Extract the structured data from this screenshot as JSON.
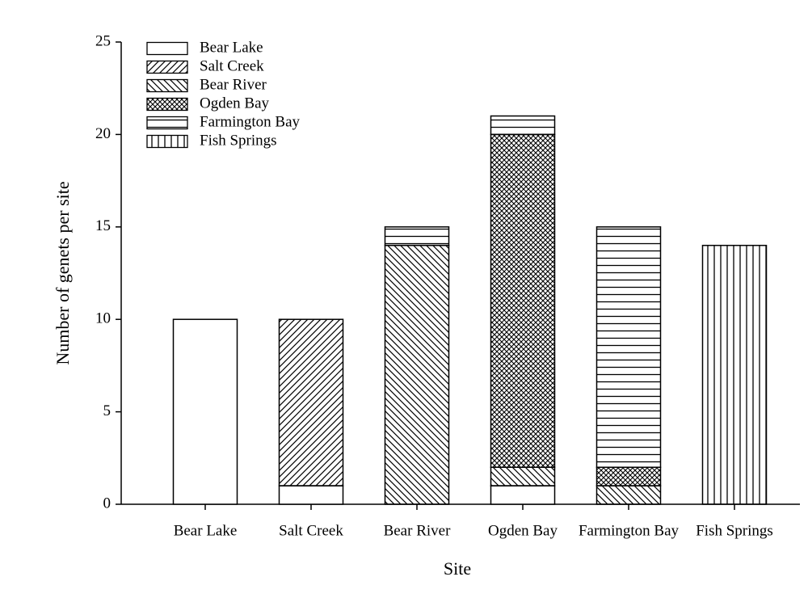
{
  "chart_data": {
    "type": "stacked-bar",
    "xlabel": "Site",
    "ylabel": "Number of genets per site",
    "categories": [
      "Bear Lake",
      "Salt Creek",
      "Bear River",
      "Ogden Bay",
      "Farmington Bay",
      "Fish Springs"
    ],
    "series": [
      {
        "name": "Bear Lake",
        "color": "#000000",
        "hatch": "none",
        "values": [
          10,
          1,
          0,
          1,
          0,
          0
        ]
      },
      {
        "name": "Salt Creek",
        "color": "#000000",
        "hatch": "forward-diagonal",
        "values": [
          0,
          9,
          0,
          0,
          0,
          0
        ]
      },
      {
        "name": "Bear River",
        "color": "#000000",
        "hatch": "backward-diagonal",
        "values": [
          0,
          0,
          14,
          1,
          1,
          0
        ]
      },
      {
        "name": "Ogden Bay",
        "color": "#000000",
        "hatch": "crosshatch",
        "values": [
          0,
          0,
          0,
          18,
          1,
          0
        ]
      },
      {
        "name": "Farmington Bay",
        "color": "#000000",
        "hatch": "horizontal",
        "values": [
          0,
          0,
          1,
          1,
          13,
          0
        ]
      },
      {
        "name": "Fish Springs",
        "color": "#000000",
        "hatch": "vertical",
        "values": [
          0,
          0,
          0,
          0,
          0,
          14
        ]
      }
    ],
    "ylim": [
      0,
      25
    ],
    "yticks": [
      0,
      5,
      10,
      15,
      20,
      25
    ],
    "legend": "upper-left"
  }
}
